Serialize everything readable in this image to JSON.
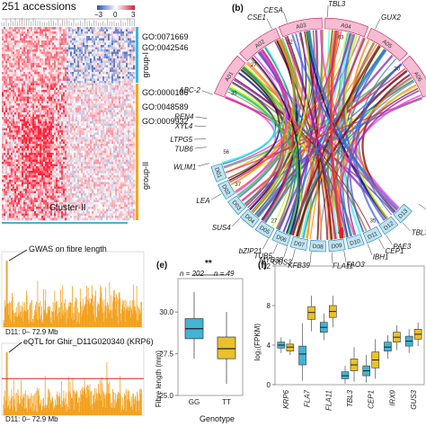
{
  "heatmap": {
    "title": "251 accessions",
    "legend_ticks": [
      "−3",
      "0",
      "3"
    ],
    "go_terms_group1": [
      "GO:0071669",
      "GO:0042546"
    ],
    "go_terms_group2": [
      "GO:0000186",
      "GO:0048589",
      "GO:0009932"
    ],
    "group1_label": "group-I",
    "group2_label": "group-II",
    "cluster_label": "Cluster-II",
    "colors": {
      "low": "#2b4fb8",
      "mid": "#ffffff",
      "high": "#d1233b",
      "group1_bar": "#43b3d6",
      "group2_bar": "#f0a820"
    }
  },
  "circos": {
    "panel_label": "(b)",
    "chromosomes_A": [
      "A01",
      "A02",
      "A03",
      "A04",
      "A05",
      "A06"
    ],
    "chromosomes_D": [
      "D01",
      "D02",
      "D03",
      "D04",
      "D05",
      "D06",
      "D07",
      "D08",
      "D09",
      "D10",
      "D11",
      "D12",
      "D13"
    ],
    "scale_numbers": [
      "35",
      "27",
      "22",
      "63",
      "30",
      "56",
      "37",
      "27",
      "47",
      "35"
    ],
    "gene_labels": [
      "CSE1",
      "CESA",
      "TBL3",
      "GUX2",
      "ABC-2",
      "REN4",
      "XYL4",
      "LTPG5",
      "TUB6",
      "WLIM1",
      "LEA",
      "SUS4",
      "bZIP21",
      "TUB5",
      "MYB38",
      "GUS3",
      "KFB39",
      "FAO3",
      "FLA11",
      "IBH1",
      "CEP1",
      "PAE3",
      "TBL3",
      "MY"
    ]
  },
  "manhattan": {
    "gwas_label": "GWAS on fibre length",
    "gwas_axis": "D11: 0– 72.9 Mb",
    "eqtl_label": "eQTL for Ghir_D11G020340 (KRP6)",
    "eqtl_axis": "D11: 0– 72.9 Mb",
    "bar_color": "#f3a01c",
    "threshold_color": "#e0202a"
  },
  "boxplot_e": {
    "panel_label": "(e)",
    "significance": "**",
    "n_gg": "n = 202",
    "n_tt": "n = 49",
    "ylabel": "Fibre length (mm)",
    "xlabel": "Genotype",
    "chart_data": {
      "type": "box",
      "categories": [
        "GG",
        "TT"
      ],
      "ylim": [
        25,
        32
      ],
      "yticks": [
        "25.0",
        "27.5",
        "30.0"
      ],
      "series": [
        {
          "name": "GG",
          "q1": 28.4,
          "median": 29.0,
          "q3": 29.6,
          "low": 27.2,
          "high": 31.2,
          "color": "#43b3d6"
        },
        {
          "name": "TT",
          "q1": 27.2,
          "median": 27.8,
          "q3": 28.5,
          "low": 25.7,
          "high": 30.0,
          "color": "#e9c12a"
        }
      ]
    }
  },
  "boxplot_f": {
    "panel_label": "(f)",
    "ylabel": "log₂(FPKM)",
    "chart_data": {
      "type": "box",
      "ylim": [
        0,
        12
      ],
      "yticks": [
        "0",
        "4",
        "8",
        "12"
      ],
      "genes": [
        "KRP6",
        "FLA7",
        "FLA11",
        "TBL3",
        "CEP1",
        "IRX9",
        "GUS3"
      ],
      "series": [
        {
          "gene": "KRP6",
          "group": "GG",
          "q1": 3.7,
          "median": 4.0,
          "q3": 4.3,
          "low": 3.2,
          "high": 4.8,
          "color": "#43b3d6"
        },
        {
          "gene": "KRP6",
          "group": "TT",
          "q1": 3.4,
          "median": 3.8,
          "q3": 4.1,
          "low": 3.0,
          "high": 4.6,
          "color": "#e9c12a"
        },
        {
          "gene": "FLA7",
          "group": "GG",
          "q1": 2.0,
          "median": 3.1,
          "q3": 3.9,
          "low": 0.4,
          "high": 6.2,
          "color": "#43b3d6"
        },
        {
          "gene": "FLA7",
          "group": "TT",
          "q1": 6.6,
          "median": 7.3,
          "q3": 7.9,
          "low": 5.4,
          "high": 9.0,
          "color": "#e9c12a"
        },
        {
          "gene": "FLA11",
          "group": "GG",
          "q1": 5.3,
          "median": 5.8,
          "q3": 6.3,
          "low": 4.5,
          "high": 7.2,
          "color": "#43b3d6"
        },
        {
          "gene": "FLA11",
          "group": "TT",
          "q1": 6.8,
          "median": 7.4,
          "q3": 8.0,
          "low": 5.8,
          "high": 9.0,
          "color": "#e9c12a"
        },
        {
          "gene": "TBL3",
          "group": "GG",
          "q1": 0.6,
          "median": 0.9,
          "q3": 1.3,
          "low": 0.1,
          "high": 1.9,
          "color": "#43b3d6"
        },
        {
          "gene": "TBL3",
          "group": "TT",
          "q1": 1.4,
          "median": 2.0,
          "q3": 2.6,
          "low": 0.3,
          "high": 3.8,
          "color": "#e9c12a"
        },
        {
          "gene": "CEP1",
          "group": "GG",
          "q1": 0.9,
          "median": 1.4,
          "q3": 1.9,
          "low": 0.2,
          "high": 3.0,
          "color": "#43b3d6"
        },
        {
          "gene": "CEP1",
          "group": "TT",
          "q1": 1.7,
          "median": 2.5,
          "q3": 3.3,
          "low": 0.6,
          "high": 4.6,
          "color": "#e9c12a"
        },
        {
          "gene": "IRX9",
          "group": "GG",
          "q1": 3.4,
          "median": 3.8,
          "q3": 4.3,
          "low": 2.6,
          "high": 5.0,
          "color": "#43b3d6"
        },
        {
          "gene": "IRX9",
          "group": "TT",
          "q1": 4.3,
          "median": 4.8,
          "q3": 5.3,
          "low": 3.5,
          "high": 6.0,
          "color": "#e9c12a"
        },
        {
          "gene": "GUS3",
          "group": "GG",
          "q1": 3.9,
          "median": 4.4,
          "q3": 4.9,
          "low": 3.2,
          "high": 5.6,
          "color": "#43b3d6"
        },
        {
          "gene": "GUS3",
          "group": "TT",
          "q1": 4.6,
          "median": 5.1,
          "q3": 5.6,
          "low": 3.9,
          "high": 6.3,
          "color": "#e9c12a"
        }
      ]
    }
  }
}
